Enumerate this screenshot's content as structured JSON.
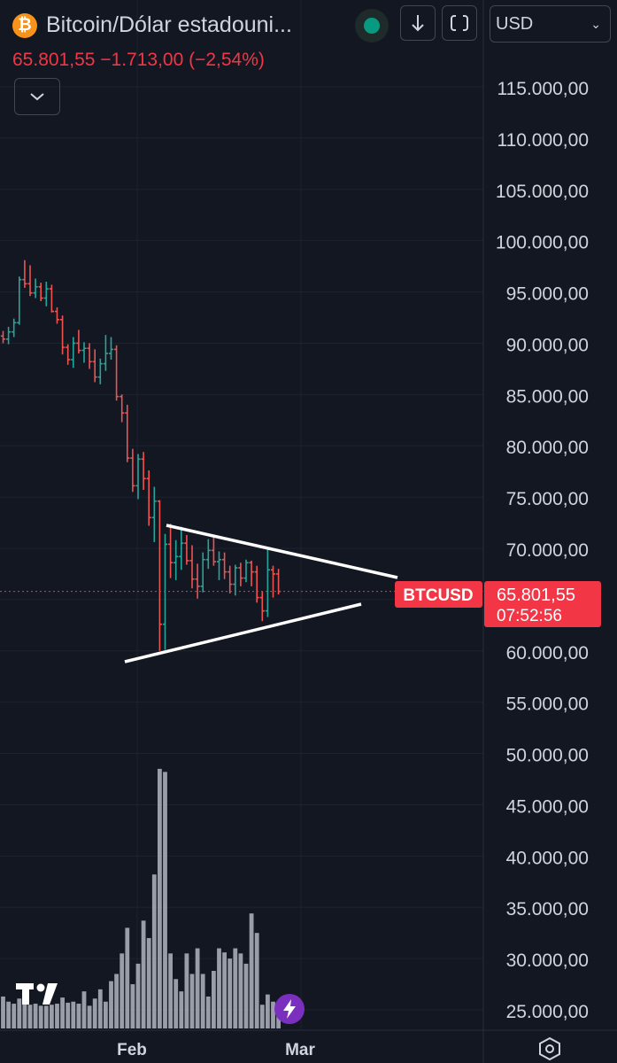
{
  "header": {
    "title": "Bitcoin/Dólar estadouni...",
    "currency": "USD",
    "price_line": "65.801,55  −1.713,00 (−2,54%)"
  },
  "icons": {
    "coin": "bitcoin-icon",
    "download": "arrow-down-icon",
    "fullscreen": "fullscreen-icon",
    "collapse": "chevron-down-icon",
    "brand": "tradingview-logo",
    "alert": "lightning-icon",
    "settings": "hexagon-settings-icon"
  },
  "colors": {
    "background": "#131722",
    "up": "#26a69a",
    "down": "#ef5350",
    "volume": "#b2b5be",
    "trendline": "#ffffff",
    "price_label": "#f23645"
  },
  "price_label": {
    "symbol": "BTCUSD",
    "price": "65.801,55",
    "countdown": "07:52:56"
  },
  "chart_data": {
    "type": "ohlc",
    "price_axis_ticks": [
      "115.000,00",
      "110.000,00",
      "105.000,00",
      "100.000,00",
      "95.000,00",
      "90.000,00",
      "85.000,00",
      "80.000,00",
      "75.000,00",
      "70.000,00",
      "65.000,00",
      "60.000,00",
      "55.000,00",
      "50.000,00",
      "45.000,00",
      "40.000,00",
      "35.000,00",
      "30.000,00",
      "25.000,00"
    ],
    "time_axis_ticks": [
      "Feb",
      "Mar"
    ],
    "ylim": [
      22500,
      117500
    ],
    "last_price": 65801.55,
    "ohlc": [
      [
        90700,
        91200,
        90000,
        90400
      ],
      [
        90400,
        91600,
        89900,
        91100
      ],
      [
        91100,
        92400,
        90600,
        92000
      ],
      [
        92000,
        96500,
        91800,
        96200
      ],
      [
        96200,
        98100,
        95400,
        95800
      ],
      [
        95800,
        97600,
        94600,
        94900
      ],
      [
        94900,
        96300,
        94400,
        95500
      ],
      [
        95500,
        95900,
        94100,
        94400
      ],
      [
        94400,
        96000,
        93600,
        95300
      ],
      [
        95300,
        95700,
        93000,
        93100
      ],
      [
        93100,
        93500,
        91900,
        92300
      ],
      [
        92300,
        92700,
        88900,
        89600
      ],
      [
        89600,
        89900,
        87900,
        88400
      ],
      [
        88400,
        90600,
        87600,
        90000
      ],
      [
        90000,
        91300,
        89000,
        89300
      ],
      [
        89300,
        90100,
        88100,
        89500
      ],
      [
        89500,
        90000,
        87500,
        88200
      ],
      [
        88200,
        89400,
        86200,
        86700
      ],
      [
        86700,
        88500,
        86000,
        88000
      ],
      [
        88000,
        90800,
        87300,
        89000
      ],
      [
        89000,
        90600,
        88400,
        89400
      ],
      [
        89400,
        89800,
        84400,
        84800
      ],
      [
        84800,
        85000,
        82300,
        83200
      ],
      [
        83200,
        84000,
        78400,
        78800
      ],
      [
        78800,
        79700,
        75500,
        76100
      ],
      [
        76100,
        79200,
        74800,
        78700
      ],
      [
        78700,
        79400,
        75700,
        76800
      ],
      [
        76800,
        77600,
        72200,
        73000
      ],
      [
        73000,
        76000,
        70600,
        74600
      ],
      [
        74600,
        74700,
        60000,
        62600
      ],
      [
        62600,
        71400,
        60100,
        70400
      ],
      [
        70400,
        72400,
        67100,
        68600
      ],
      [
        68600,
        70800,
        66900,
        69200
      ],
      [
        69200,
        72100,
        67900,
        70500
      ],
      [
        70500,
        71300,
        68400,
        68800
      ],
      [
        68800,
        70300,
        66100,
        67000
      ],
      [
        67000,
        68500,
        65100,
        66300
      ],
      [
        66300,
        69600,
        65700,
        68900
      ],
      [
        68900,
        70900,
        68000,
        69800
      ],
      [
        69800,
        71100,
        68300,
        68700
      ],
      [
        68700,
        69700,
        66900,
        68900
      ],
      [
        68900,
        69600,
        67000,
        67700
      ],
      [
        67700,
        68300,
        65600,
        66500
      ],
      [
        66500,
        68400,
        65400,
        68100
      ],
      [
        68100,
        68600,
        66300,
        67100
      ],
      [
        67100,
        68900,
        66700,
        68600
      ],
      [
        68600,
        68800,
        66300,
        67700
      ],
      [
        67700,
        68300,
        64700,
        65200
      ],
      [
        65200,
        65800,
        62900,
        63900
      ],
      [
        63900,
        70000,
        63300,
        67900
      ],
      [
        67900,
        68300,
        65200,
        67500
      ],
      [
        67500,
        68000,
        65500,
        65800
      ]
    ],
    "volume": [
      26300,
      25800,
      25600,
      26100,
      25700,
      25500,
      25600,
      25400,
      25400,
      25500,
      25600,
      26200,
      25700,
      25800,
      25600,
      26800,
      25400,
      26100,
      27000,
      25800,
      27800,
      28500,
      30500,
      33000,
      27500,
      29500,
      33700,
      32000,
      38200,
      48500,
      48200,
      30500,
      28000,
      26800,
      30500,
      28500,
      31000,
      28500,
      26300,
      28800,
      31000,
      30600,
      30000,
      31000,
      30500,
      29500,
      34400,
      32500,
      25500,
      26500,
      25800,
      25500
    ]
  }
}
